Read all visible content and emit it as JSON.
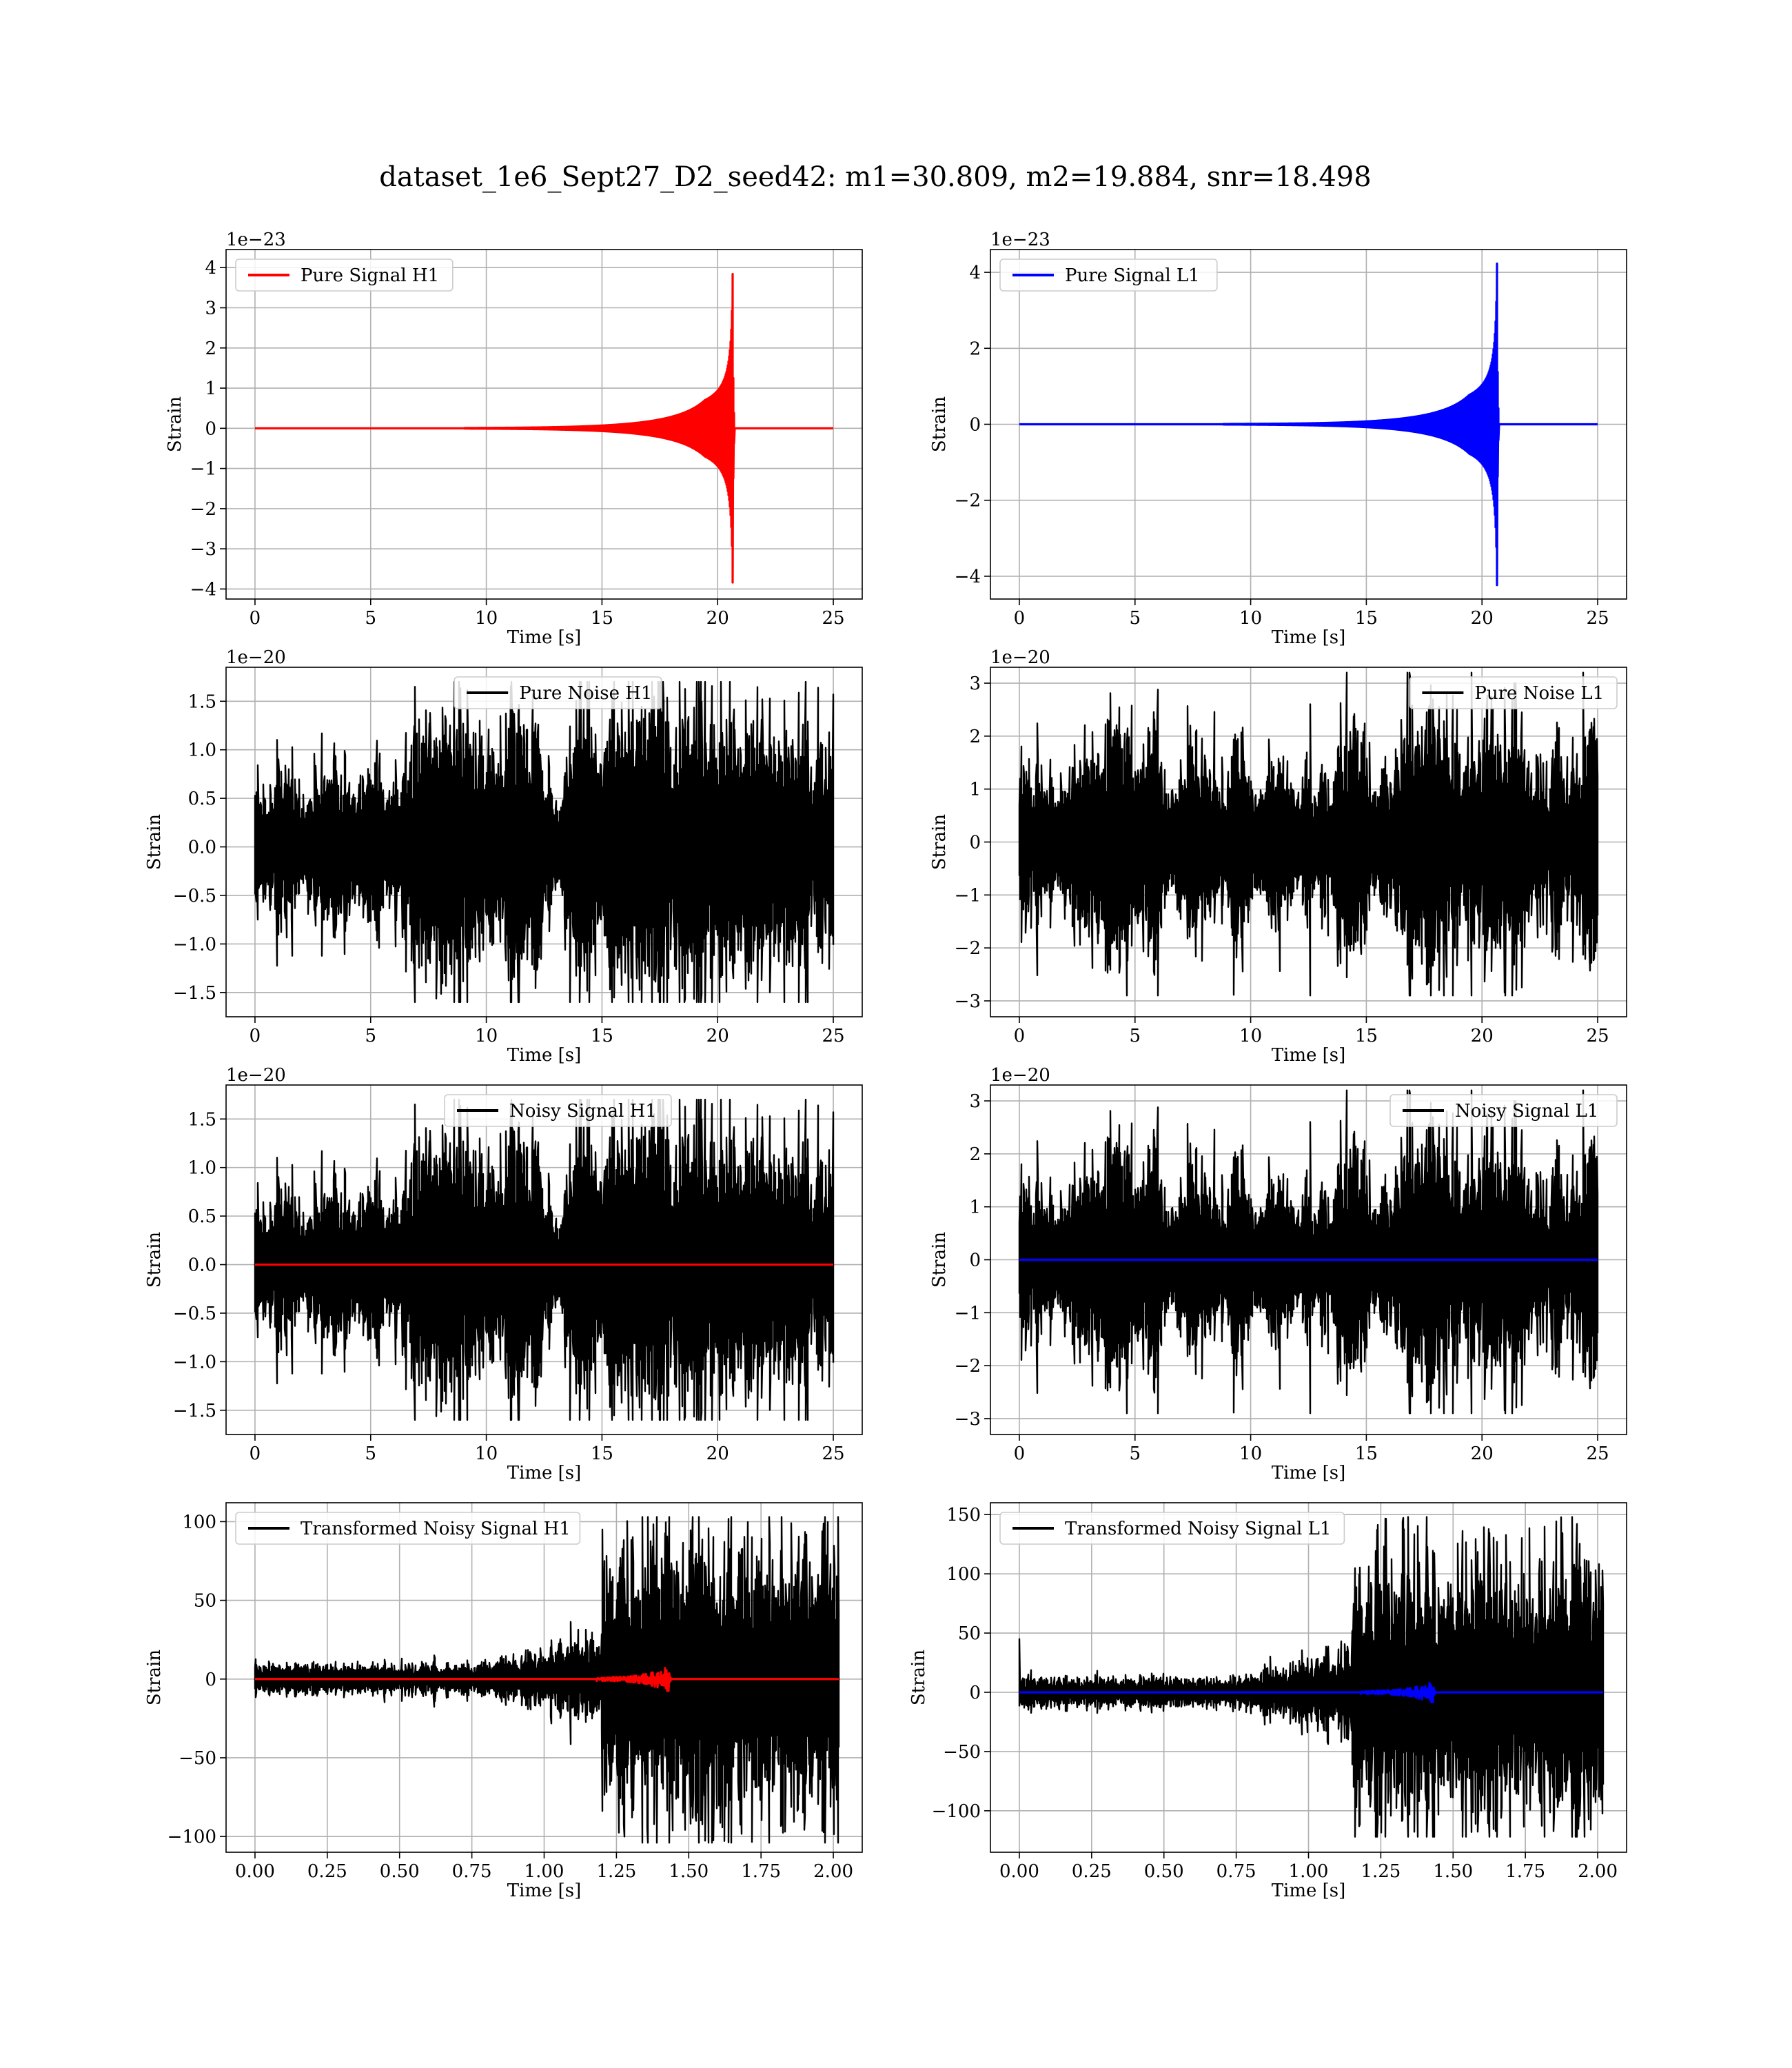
{
  "figure": {
    "suptitle": "dataset_1e6_Sept27_D2_seed42: m1=30.809, m2=19.884, snr=18.498"
  },
  "colors": {
    "h1_signal": "#ff0000",
    "l1_signal": "#0000ff",
    "noise": "#000000",
    "grid": "#b0b0b0"
  },
  "chart_data": [
    {
      "type": "line",
      "id": "pure-signal-h1",
      "xlabel": "Time [s]",
      "ylabel": "Strain",
      "offset_text": "1e−23",
      "xlim": [
        -1.25,
        26.25
      ],
      "ylim": [
        -4.25,
        4.45
      ],
      "xticks": [
        0,
        5,
        10,
        15,
        20,
        25
      ],
      "xtick_labels": [
        "0",
        "5",
        "10",
        "15",
        "20",
        "25"
      ],
      "yticks": [
        4,
        3,
        2,
        1,
        0,
        -1,
        -2,
        -3,
        -4
      ],
      "ytick_labels": [
        "4",
        "3",
        "2",
        "1",
        "0",
        "−1",
        "−2",
        "−3",
        "−4"
      ],
      "legend": {
        "position": "upper left"
      },
      "grid": true,
      "series": [
        {
          "name": "Pure Signal H1",
          "role": "signal",
          "color": "#ff0000",
          "waveform": "chirp",
          "t_start": 0,
          "t_end": 25,
          "merger_time": 20.65,
          "peak_amplitude": 3.9
        }
      ]
    },
    {
      "type": "line",
      "id": "pure-signal-l1",
      "xlabel": "Time [s]",
      "ylabel": "Strain",
      "offset_text": "1e−23",
      "xlim": [
        -1.25,
        26.25
      ],
      "ylim": [
        -4.6,
        4.6
      ],
      "xticks": [
        0,
        5,
        10,
        15,
        20,
        25
      ],
      "xtick_labels": [
        "0",
        "5",
        "10",
        "15",
        "20",
        "25"
      ],
      "yticks": [
        4,
        2,
        0,
        -2,
        -4
      ],
      "ytick_labels": [
        "4",
        "2",
        "0",
        "−2",
        "−4"
      ],
      "legend": {
        "position": "upper left"
      },
      "grid": true,
      "series": [
        {
          "name": "Pure Signal L1",
          "role": "signal",
          "color": "#0000ff",
          "waveform": "chirp",
          "t_start": 0,
          "t_end": 25,
          "merger_time": 20.65,
          "peak_amplitude": 4.3
        }
      ]
    },
    {
      "type": "line",
      "id": "pure-noise-h1",
      "xlabel": "Time [s]",
      "ylabel": "Strain",
      "offset_text": "1e−20",
      "xlim": [
        -1.25,
        26.25
      ],
      "ylim": [
        -1.75,
        1.85
      ],
      "xticks": [
        0,
        5,
        10,
        15,
        20,
        25
      ],
      "xtick_labels": [
        "0",
        "5",
        "10",
        "15",
        "20",
        "25"
      ],
      "yticks": [
        1.5,
        1.0,
        0.5,
        0.0,
        -0.5,
        -1.0,
        -1.5
      ],
      "ytick_labels": [
        "1.5",
        "1.0",
        "0.5",
        "0.0",
        "−0.5",
        "−1.0",
        "−1.5"
      ],
      "legend": {
        "position": "upper center"
      },
      "grid": true,
      "series": [
        {
          "name": "Pure Noise H1",
          "role": "noise",
          "color": "#000000",
          "waveform": "noise",
          "t_start": 0,
          "t_end": 25,
          "envelope": 1.15,
          "max": 1.7,
          "min": -1.6,
          "seed": 11
        }
      ]
    },
    {
      "type": "line",
      "id": "pure-noise-l1",
      "xlabel": "Time [s]",
      "ylabel": "Strain",
      "offset_text": "1e−20",
      "xlim": [
        -1.25,
        26.25
      ],
      "ylim": [
        -3.3,
        3.3
      ],
      "xticks": [
        0,
        5,
        10,
        15,
        20,
        25
      ],
      "xtick_labels": [
        "0",
        "5",
        "10",
        "15",
        "20",
        "25"
      ],
      "yticks": [
        3,
        2,
        1,
        0,
        -1,
        -2,
        -3
      ],
      "ytick_labels": [
        "3",
        "2",
        "1",
        "0",
        "−1",
        "−2",
        "−3"
      ],
      "legend": {
        "position": "upper right"
      },
      "grid": true,
      "series": [
        {
          "name": "Pure Noise L1",
          "role": "noise",
          "color": "#000000",
          "waveform": "noise",
          "t_start": 0,
          "t_end": 25,
          "envelope": 2.1,
          "max": 3.2,
          "min": -2.9,
          "seed": 23
        }
      ]
    },
    {
      "type": "line",
      "id": "noisy-signal-h1",
      "xlabel": "Time [s]",
      "ylabel": "Strain",
      "offset_text": "1e−20",
      "xlim": [
        -1.25,
        26.25
      ],
      "ylim": [
        -1.75,
        1.85
      ],
      "xticks": [
        0,
        5,
        10,
        15,
        20,
        25
      ],
      "xtick_labels": [
        "0",
        "5",
        "10",
        "15",
        "20",
        "25"
      ],
      "yticks": [
        1.5,
        1.0,
        0.5,
        0.0,
        -0.5,
        -1.0,
        -1.5
      ],
      "ytick_labels": [
        "1.5",
        "1.0",
        "0.5",
        "0.0",
        "−0.5",
        "−1.0",
        "−1.5"
      ],
      "legend": {
        "position": "upper center"
      },
      "grid": true,
      "series": [
        {
          "name": "Noisy Signal H1",
          "role": "noise",
          "color": "#000000",
          "waveform": "noise",
          "t_start": 0,
          "t_end": 25,
          "envelope": 1.15,
          "max": 1.7,
          "min": -1.6,
          "seed": 11
        },
        {
          "name": "",
          "role": "signal",
          "color": "#ff0000",
          "waveform": "flat",
          "t_start": 0,
          "t_end": 25,
          "value": 0
        }
      ]
    },
    {
      "type": "line",
      "id": "noisy-signal-l1",
      "xlabel": "Time [s]",
      "ylabel": "Strain",
      "offset_text": "1e−20",
      "xlim": [
        -1.25,
        26.25
      ],
      "ylim": [
        -3.3,
        3.3
      ],
      "xticks": [
        0,
        5,
        10,
        15,
        20,
        25
      ],
      "xtick_labels": [
        "0",
        "5",
        "10",
        "15",
        "20",
        "25"
      ],
      "yticks": [
        3,
        2,
        1,
        0,
        -1,
        -2,
        -3
      ],
      "ytick_labels": [
        "3",
        "2",
        "1",
        "0",
        "−1",
        "−2",
        "−3"
      ],
      "legend": {
        "position": "upper right"
      },
      "grid": true,
      "series": [
        {
          "name": "Noisy Signal L1",
          "role": "noise",
          "color": "#000000",
          "waveform": "noise",
          "t_start": 0,
          "t_end": 25,
          "envelope": 2.1,
          "max": 3.2,
          "min": -2.9,
          "seed": 23
        },
        {
          "name": "",
          "role": "signal",
          "color": "#0000ff",
          "waveform": "flat",
          "t_start": 0,
          "t_end": 25,
          "value": 0
        }
      ]
    },
    {
      "type": "line",
      "id": "transformed-noisy-signal-h1",
      "xlabel": "Time [s]",
      "ylabel": "Strain",
      "offset_text": "",
      "xlim": [
        -0.1,
        2.1
      ],
      "ylim": [
        -110,
        112
      ],
      "xticks": [
        0.0,
        0.25,
        0.5,
        0.75,
        1.0,
        1.25,
        1.5,
        1.75,
        2.0
      ],
      "xtick_labels": [
        "0.00",
        "0.25",
        "0.50",
        "0.75",
        "1.00",
        "1.25",
        "1.50",
        "1.75",
        "2.00"
      ],
      "yticks": [
        100,
        50,
        0,
        -50,
        -100
      ],
      "ytick_labels": [
        "100",
        "50",
        "0",
        "−50",
        "−100"
      ],
      "legend": {
        "position": "upper left"
      },
      "grid": true,
      "series": [
        {
          "name": "Transformed Noisy Signal H1",
          "role": "noise",
          "color": "#000000",
          "waveform": "transformed",
          "t_start": 0,
          "t_end": 2.02,
          "low_level": 7,
          "high_level": 60,
          "jump_time": 1.2,
          "max": 103,
          "min": -104,
          "seed": 37
        },
        {
          "name": "",
          "role": "signal",
          "color": "#ff0000",
          "waveform": "small-chirp",
          "t_start": 0,
          "t_end": 2.02,
          "merger_time": 1.43,
          "peak_amplitude": 8
        }
      ]
    },
    {
      "type": "line",
      "id": "transformed-noisy-signal-l1",
      "xlabel": "Time [s]",
      "ylabel": "Strain",
      "offset_text": "",
      "xlim": [
        -0.1,
        2.1
      ],
      "ylim": [
        -135,
        160
      ],
      "xticks": [
        0.0,
        0.25,
        0.5,
        0.75,
        1.0,
        1.25,
        1.5,
        1.75,
        2.0
      ],
      "xtick_labels": [
        "0.00",
        "0.25",
        "0.50",
        "0.75",
        "1.00",
        "1.25",
        "1.50",
        "1.75",
        "2.00"
      ],
      "yticks": [
        150,
        100,
        50,
        0,
        -50,
        -100
      ],
      "ytick_labels": [
        "150",
        "100",
        "50",
        "0",
        "−50",
        "−100"
      ],
      "legend": {
        "position": "upper left"
      },
      "grid": true,
      "series": [
        {
          "name": "Transformed Noisy Signal L1",
          "role": "noise",
          "color": "#000000",
          "waveform": "transformed",
          "t_start": 0,
          "t_end": 2.02,
          "low_level": 9,
          "high_level": 80,
          "jump_time": 1.15,
          "max": 148,
          "min": -122,
          "seed": 51,
          "initial_spike": 45
        },
        {
          "name": "",
          "role": "signal",
          "color": "#0000ff",
          "waveform": "small-chirp",
          "t_start": 0,
          "t_end": 2.02,
          "merger_time": 1.43,
          "peak_amplitude": 9
        }
      ]
    }
  ]
}
